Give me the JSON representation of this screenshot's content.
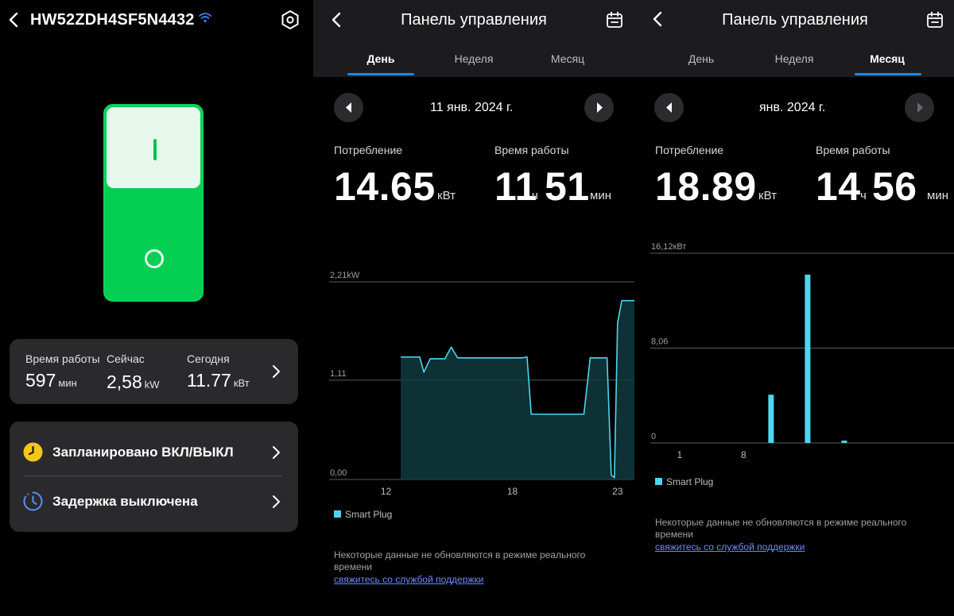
{
  "device": {
    "title": "HW52ZDH4SF5N4432",
    "stats": [
      {
        "label": "Время работы",
        "value": "597",
        "unit": "мин"
      },
      {
        "label": "Сейчас",
        "value": "2,58",
        "unit": "kW"
      },
      {
        "label": "Сегодня",
        "value": "11.77",
        "unit": "кВт"
      }
    ],
    "actions": [
      {
        "label": "Запланировано ВКЛ/ВЫКЛ",
        "icon": "clock-icon"
      },
      {
        "label": "Задержка выключена",
        "icon": "timer-icon"
      }
    ],
    "colors": {
      "switch_on": "#05cf53",
      "switch_top": "#e6f8ec",
      "schedule_icon": "#f5c518",
      "timer_icon": "#5b8def"
    }
  },
  "day_view": {
    "title": "Панель управления",
    "tabs": [
      "День",
      "Неделя",
      "Месяц"
    ],
    "active_tab": "День",
    "period": "11 янв. 2024 г.",
    "consumption_label": "Потребление",
    "consumption_value": "14.65",
    "consumption_unit": "кВт",
    "runtime_label": "Время работы",
    "runtime_hours": "11",
    "runtime_hours_unit": "ч",
    "runtime_minutes": "51",
    "runtime_minutes_unit": "мин",
    "legend": "Smart Plug",
    "note": "Некоторые данные не обновляются в режиме реального времени",
    "support_link": "свяжитесь со службой поддержки"
  },
  "month_view": {
    "title": "Панель управления",
    "tabs": [
      "День",
      "Неделя",
      "Месяц"
    ],
    "active_tab": "Месяц",
    "period": "янв. 2024 г.",
    "consumption_label": "Потребление",
    "consumption_value": "18.89",
    "consumption_unit": "кВт",
    "runtime_label": "Время работы",
    "runtime_hours": "14",
    "runtime_hours_unit": "ч",
    "runtime_minutes": "56",
    "runtime_minutes_unit": "мин",
    "legend": "Smart Plug",
    "note": "Некоторые данные не обновляются в режиме реального времени",
    "support_link": "свяжитесь со службой поддержки"
  },
  "chart_data": [
    {
      "type": "area",
      "title": "",
      "xlabel": "",
      "ylabel": "",
      "y_tick_labels": [
        "2,21kW",
        "1,11",
        "0,00"
      ],
      "y_ticks": [
        2.21,
        1.11,
        0.0
      ],
      "ylim": [
        0,
        2.21
      ],
      "xlim": [
        9.3,
        23.8
      ],
      "x_tick_labels": [
        "12",
        "18",
        "23"
      ],
      "x_ticks": [
        12,
        18,
        23
      ],
      "grid": true,
      "legend": "bottom-left",
      "series": [
        {
          "name": "Smart Plug",
          "color": "#4dd6ec",
          "x": [
            12.7,
            13.2,
            13.4,
            13.6,
            13.8,
            14.1,
            14.3,
            14.6,
            14.8,
            15.1,
            15.4,
            15.7,
            16.0,
            16.5,
            17.0,
            17.5,
            18.0,
            18.5,
            18.7,
            18.9,
            19.2,
            19.6,
            20.0,
            20.5,
            20.8,
            21.1,
            21.4,
            21.7,
            22.0,
            22.2,
            22.35,
            22.5,
            22.7,
            22.85,
            23.0,
            23.2,
            23.5,
            23.8
          ],
          "y": [
            1.37,
            1.37,
            1.37,
            1.37,
            1.2,
            1.35,
            1.35,
            1.35,
            1.35,
            1.48,
            1.36,
            1.36,
            1.36,
            1.36,
            1.36,
            1.36,
            1.36,
            1.36,
            1.37,
            0.73,
            0.73,
            0.73,
            0.73,
            0.73,
            0.73,
            0.73,
            0.73,
            1.36,
            1.36,
            1.36,
            1.36,
            1.36,
            0.05,
            0.02,
            1.75,
            2.0,
            2.0,
            2.0
          ]
        }
      ]
    },
    {
      "type": "bar",
      "title": "",
      "xlabel": "",
      "ylabel": "",
      "y_tick_labels": [
        "16,12кВт",
        "8,06",
        "0"
      ],
      "y_ticks": [
        16.12,
        8.06,
        0
      ],
      "ylim": [
        0,
        16.12
      ],
      "xlim": [
        -2.2,
        31
      ],
      "x_tick_labels": [
        "1",
        "8"
      ],
      "x_ticks": [
        1,
        8
      ],
      "grid": true,
      "legend": "bottom-left",
      "series": [
        {
          "name": "Smart Plug",
          "color": "#4dd6ec",
          "x": [
            11,
            15,
            19
          ],
          "y": [
            4.1,
            14.3,
            0.2
          ]
        }
      ]
    }
  ]
}
